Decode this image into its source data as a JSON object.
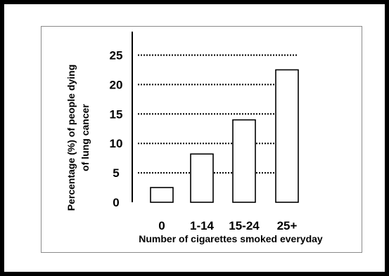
{
  "chart_data": {
    "type": "bar",
    "categories": [
      "0",
      "1-14",
      "15-24",
      "25+"
    ],
    "values": [
      2.5,
      8.2,
      14,
      22.5
    ],
    "title": "",
    "xlabel": "Number of cigarettes smoked everyday",
    "ylabel_lines": [
      "Percentage (%) of people dying",
      "of lung cancer"
    ],
    "ylim": [
      0,
      25
    ],
    "yticks": [
      0,
      5,
      10,
      15,
      20,
      25
    ],
    "grid": "horizontal dotted",
    "legend": "none",
    "colors": {
      "bar_fill": "#ffffff",
      "bar_stroke": "#000000",
      "grid": "#000000",
      "frame": "#000000"
    }
  }
}
